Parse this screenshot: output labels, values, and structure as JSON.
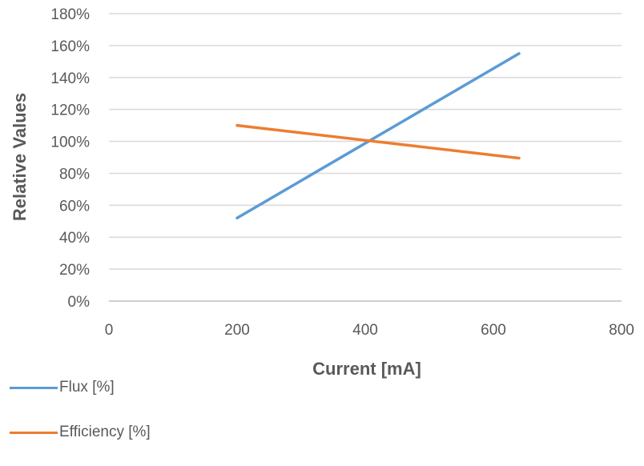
{
  "chart_data": {
    "type": "line",
    "xlabel": "Current [mA]",
    "ylabel": "Relative Values",
    "xlim": [
      0,
      800
    ],
    "ylim": [
      0,
      180
    ],
    "x_ticks": [
      "0",
      "200",
      "400",
      "600",
      "800"
    ],
    "y_ticks": [
      "0%",
      "20%",
      "40%",
      "60%",
      "80%",
      "100%",
      "120%",
      "140%",
      "160%",
      "180%"
    ],
    "grid": "horizontal",
    "legend_position": "bottom-left",
    "series": [
      {
        "name": "Flux [%]",
        "color": "#5B9BD5",
        "x": [
          200,
          640
        ],
        "y": [
          52,
          155
        ]
      },
      {
        "name": "Efficiency [%]",
        "color": "#ED7D31",
        "x": [
          200,
          640
        ],
        "y": [
          110,
          89.5
        ]
      }
    ]
  }
}
